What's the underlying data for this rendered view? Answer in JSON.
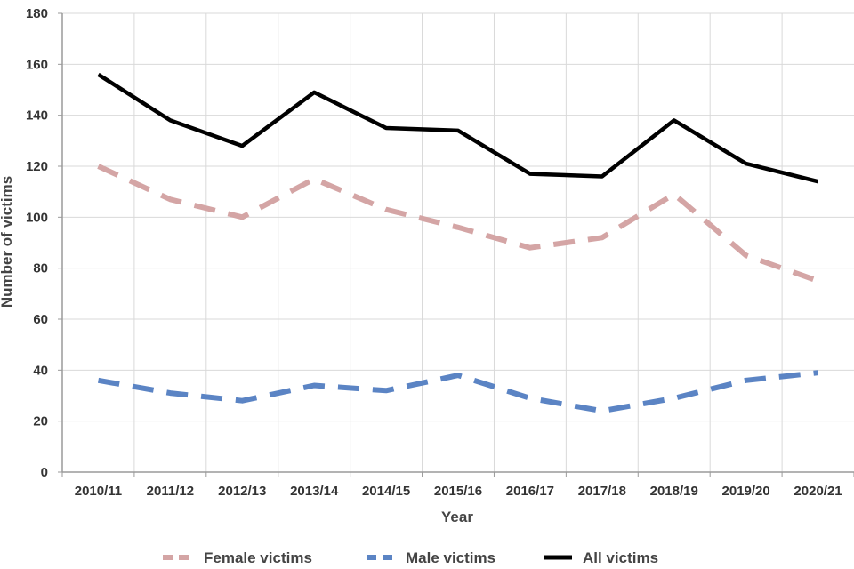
{
  "chart_data": {
    "type": "line",
    "title": "",
    "xlabel": "Year",
    "ylabel": "Number of victims",
    "ylim": [
      0,
      180
    ],
    "yticks": [
      0,
      20,
      40,
      60,
      80,
      100,
      120,
      140,
      160,
      180
    ],
    "grid": true,
    "legend_position": "bottom",
    "categories": [
      "2010/11",
      "2011/12",
      "2012/13",
      "2013/14",
      "2014/15",
      "2015/16",
      "2016/17",
      "2017/18",
      "2018/19",
      "2019/20",
      "2020/21"
    ],
    "series": [
      {
        "name": "Female victims",
        "color": "#d4a5a5",
        "style": "dashed",
        "values": [
          120,
          107,
          100,
          115,
          103,
          96,
          88,
          92,
          109,
          85,
          75
        ]
      },
      {
        "name": "Male victims",
        "color": "#5b84c4",
        "style": "dashed",
        "values": [
          36,
          31,
          28,
          34,
          32,
          38,
          29,
          24,
          29,
          36,
          39
        ]
      },
      {
        "name": "All victims",
        "color": "#000000",
        "style": "solid",
        "values": [
          156,
          138,
          128,
          149,
          135,
          134,
          117,
          116,
          138,
          121,
          114
        ]
      }
    ]
  }
}
